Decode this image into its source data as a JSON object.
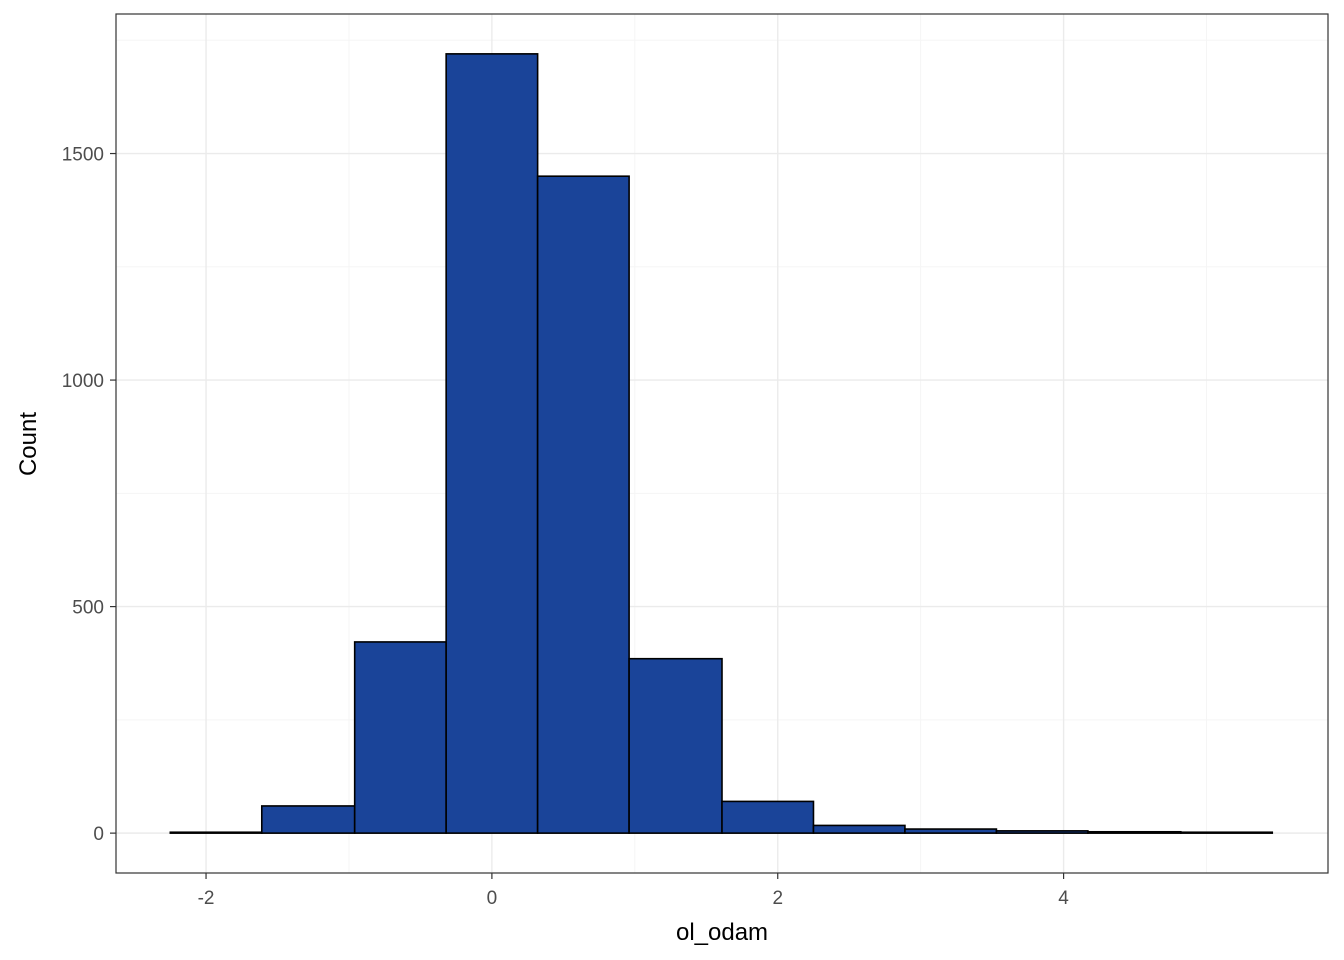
{
  "chart_data": {
    "type": "bar",
    "subtype": "histogram",
    "title": "",
    "xlabel": "ol_odam",
    "ylabel": "Count",
    "bin_edges": [
      -2.25,
      -1.61,
      -0.96,
      -0.32,
      0.32,
      0.96,
      1.61,
      2.25,
      2.89,
      3.53,
      4.17,
      4.82,
      5.46
    ],
    "values": [
      2,
      60,
      422,
      1720,
      1450,
      385,
      70,
      17,
      9,
      5,
      3,
      2
    ],
    "xlim": [
      -2.63,
      5.85
    ],
    "ylim": [
      -88,
      1808
    ],
    "x_ticks": [
      -2,
      0,
      2,
      4
    ],
    "x_tick_labels": [
      "-2",
      "0",
      "2",
      "4"
    ],
    "y_ticks": [
      0,
      500,
      1000,
      1500
    ],
    "y_tick_labels": [
      "0",
      "500",
      "1000",
      "1500"
    ],
    "grid": true,
    "legend": "none",
    "colors": {
      "bar_fill": "#1A4499",
      "bar_outline": "#000000",
      "grid_major": "#EBEBEB",
      "grid_minor": "#F5F5F5",
      "panel_border": "#333333",
      "tick_text": "#4D4D4D"
    }
  }
}
